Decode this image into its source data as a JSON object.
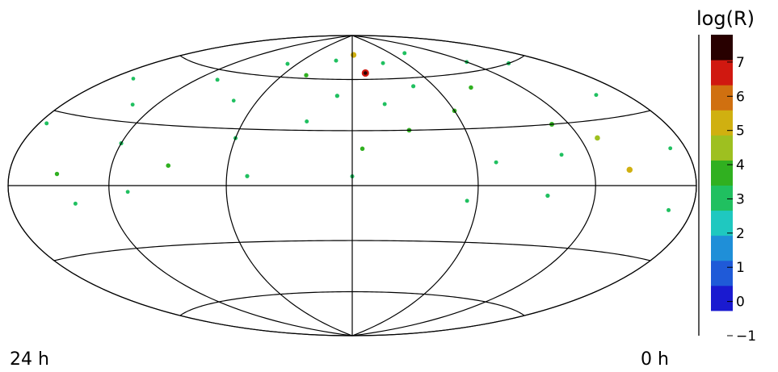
{
  "chart_data": {
    "type": "heatmap",
    "projection": "Aitoff-Hammer all-sky",
    "ra_left_label": "24 h",
    "ra_right_label": "0 h",
    "colorbar": {
      "title": "log(R)",
      "ticks": [
        "7",
        "6",
        "5",
        "4",
        "3",
        "2",
        "1",
        "0",
        "−1"
      ],
      "range": [
        -1,
        7.8
      ],
      "colors": [
        "#ffffff",
        "#1a1ad0",
        "#1f5ad8",
        "#1f8fd8",
        "#1fc8c0",
        "#20c060",
        "#30b020",
        "#9ec020",
        "#d0b010",
        "#d07010",
        "#d01810",
        "#280000"
      ]
    },
    "map": {
      "background_value": -0.3,
      "coverage_dec_range": [
        -15,
        90
      ],
      "meridians_ra_deg": [
        0,
        60,
        120,
        180,
        240,
        300,
        360
      ],
      "parallels_dec_deg": [
        -60,
        -30,
        0,
        30,
        60
      ]
    },
    "hotspots": [
      {
        "ra": 168,
        "dec": 64,
        "value": 6.8
      },
      {
        "ra": 178,
        "dec": 76,
        "value": 5.0
      },
      {
        "ra": 40,
        "dec": 7,
        "value": 5.3
      },
      {
        "ra": 50,
        "dec": 22,
        "value": 4.5
      },
      {
        "ra": 70,
        "dec": 30,
        "value": 4.0
      },
      {
        "ra": 95,
        "dec": 52,
        "value": 3.5
      },
      {
        "ra": 120,
        "dec": 40,
        "value": 3.6
      },
      {
        "ra": 135,
        "dec": 55,
        "value": 3.2
      },
      {
        "ra": 150,
        "dec": 30,
        "value": 3.8
      },
      {
        "ra": 160,
        "dec": 45,
        "value": 3.0
      },
      {
        "ra": 175,
        "dec": 20,
        "value": 3.5
      },
      {
        "ra": 190,
        "dec": 50,
        "value": 3.3
      },
      {
        "ra": 205,
        "dec": 35,
        "value": 3.0
      },
      {
        "ra": 220,
        "dec": 62,
        "value": 3.4
      },
      {
        "ra": 240,
        "dec": 25,
        "value": 3.1
      },
      {
        "ra": 255,
        "dec": 45,
        "value": 2.8
      },
      {
        "ra": 270,
        "dec": 10,
        "value": 3.6
      },
      {
        "ra": 285,
        "dec": 55,
        "value": 3.0
      },
      {
        "ra": 300,
        "dec": 20,
        "value": 3.2
      },
      {
        "ra": 315,
        "dec": 38,
        "value": 2.9
      },
      {
        "ra": 330,
        "dec": 5,
        "value": 3.4
      },
      {
        "ra": 345,
        "dec": 48,
        "value": 2.8
      },
      {
        "ra": 20,
        "dec": 40,
        "value": 3.0
      },
      {
        "ra": 30,
        "dec": 60,
        "value": 3.2
      },
      {
        "ra": 10,
        "dec": 15,
        "value": 2.9
      },
      {
        "ra": 85,
        "dec": -5,
        "value": 3.3
      },
      {
        "ra": 110,
        "dec": 12,
        "value": 3.0
      },
      {
        "ra": 145,
        "dec": 70,
        "value": 3.0
      },
      {
        "ra": 200,
        "dec": 72,
        "value": 3.1
      },
      {
        "ra": 250,
        "dec": 68,
        "value": 3.0
      },
      {
        "ra": 60,
        "dec": 65,
        "value": 2.9
      },
      {
        "ra": 100,
        "dec": 75,
        "value": 3.0
      },
      {
        "ra": 230,
        "dec": 5,
        "value": 3.2
      },
      {
        "ra": 320,
        "dec": -8,
        "value": 3.0
      },
      {
        "ra": 15,
        "dec": -10,
        "value": 3.1
      },
      {
        "ra": 290,
        "dec": -3,
        "value": 2.9
      },
      {
        "ra": 180,
        "dec": 5,
        "value": 3.1
      },
      {
        "ra": 125,
        "dec": -8,
        "value": 3.0
      },
      {
        "ra": 355,
        "dec": 25,
        "value": 3.0
      },
      {
        "ra": 75,
        "dec": 15,
        "value": 3.0
      }
    ]
  }
}
